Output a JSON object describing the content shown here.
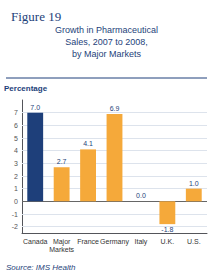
{
  "chart_data": {
    "type": "bar",
    "title": "Figure 19",
    "subtitle": "Growth in Pharmaceutical\nSales, 2007 to 2008,\nby Major Markets",
    "ylabel": "Percentage",
    "annotations": [
      "Source: IMS Health"
    ],
    "categories": [
      "Canada",
      "Major\nMarkets",
      "France",
      "Germany",
      "Italy",
      "U.K.",
      "U.S."
    ],
    "values": [
      7.0,
      2.7,
      4.1,
      6.9,
      0.0,
      -1.8,
      1.0
    ],
    "value_labels": [
      "7.0",
      "2.7",
      "4.1",
      "6.9",
      "0.0",
      "-1.8",
      "1.0"
    ],
    "colors": [
      "#1e3f7a",
      "#f5a93a",
      "#f5a93a",
      "#f5a93a",
      "#f5a93a",
      "#f5a93a",
      "#f5a93a"
    ],
    "ylim": [
      -2.5,
      8.0
    ],
    "yticks": [
      -2,
      -1,
      0,
      1,
      2,
      3,
      4,
      5,
      6,
      7
    ],
    "grid": true,
    "data_labels": true
  }
}
